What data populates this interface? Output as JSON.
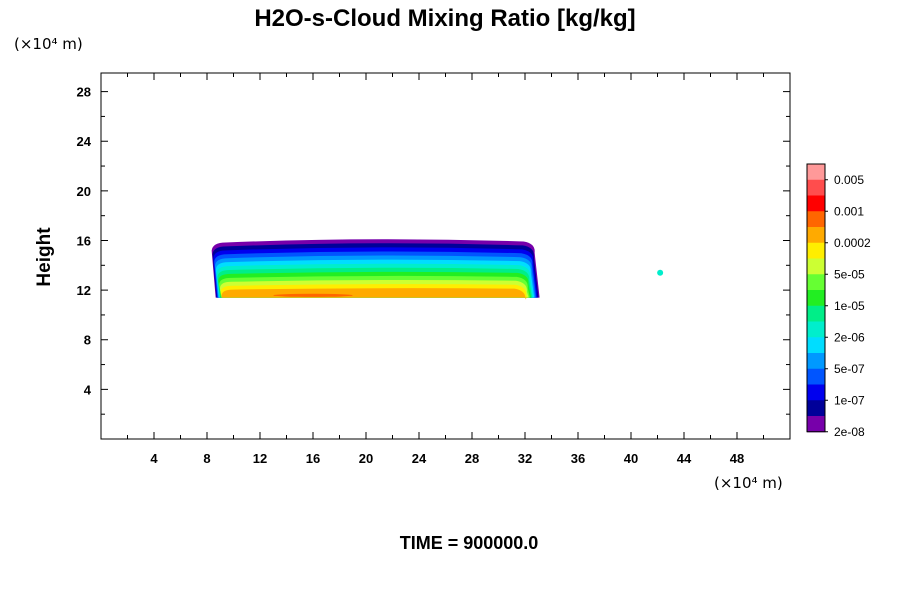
{
  "chart_data": {
    "type": "heatmap",
    "title": "H2O-s-Cloud Mixing Ratio [kg/kg]",
    "xlabel": "",
    "ylabel": "Height",
    "x_unit_label": "(×10⁴ m)",
    "y_unit_label": "(×10⁴ m)",
    "x_range": [
      0,
      52
    ],
    "y_range": [
      0,
      29.5
    ],
    "x_ticks": [
      4,
      8,
      12,
      16,
      20,
      24,
      28,
      32,
      36,
      40,
      44,
      48
    ],
    "y_ticks": [
      4,
      8,
      12,
      16,
      20,
      24,
      28
    ],
    "footer": "TIME = 900000.0",
    "colorbar": {
      "labels": [
        "0.005",
        "0.001",
        "0.0002",
        "5e-05",
        "1e-05",
        "2e-06",
        "5e-07",
        "1e-07",
        "2e-08"
      ],
      "colors": [
        "#ff9999",
        "#ff4d4d",
        "#ff0000",
        "#ff6600",
        "#ffaa00",
        "#ffee00",
        "#ccff33",
        "#66ff33",
        "#22ee22",
        "#00ee88",
        "#00eecc",
        "#00ddff",
        "#0099ff",
        "#0055ff",
        "#0000ee",
        "#000099",
        "#7700aa"
      ]
    },
    "cloud_layer": {
      "x_start": 8.2,
      "x_end": 32.8,
      "base": 11.4,
      "top": 16.0,
      "bands_top_to_bottom": [
        "#7700aa",
        "#000099",
        "#0000ee",
        "#0055ff",
        "#0099ff",
        "#00ddff",
        "#00eecc",
        "#00ee88",
        "#22ee22",
        "#66ff33",
        "#ccff33",
        "#ffee00",
        "#ffaa00"
      ],
      "core_color": "#ff6600",
      "core_x": [
        13,
        19
      ],
      "core_y": 11.5
    },
    "isolated_cell": {
      "x": 42.2,
      "y": 13.4,
      "color": "#00eecc"
    }
  }
}
